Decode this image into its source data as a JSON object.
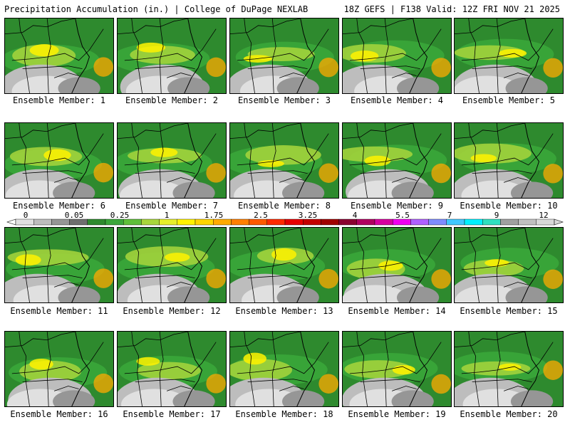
{
  "header": {
    "left": "Precipitation Accumulation (in.) | College of DuPage NEXLAB",
    "right": "18Z GEFS | F138 Valid: 12Z FRI NOV 21 2025"
  },
  "legend": {
    "tick_labels": [
      "0",
      "0.05",
      "0.25",
      "1",
      "1.75",
      "2.5",
      "3.25",
      "4",
      "5.5",
      "7",
      "9",
      "12"
    ],
    "colors": [
      "#e0e0e0",
      "#bdbdbd",
      "#969696",
      "#6e6e6e",
      "#2e8a2e",
      "#3aa63a",
      "#5fbf3a",
      "#a8d63c",
      "#e6ee2a",
      "#fff200",
      "#ffd500",
      "#ffaa00",
      "#ff7f00",
      "#ff5a00",
      "#ff2a00",
      "#e60000",
      "#c40000",
      "#a00000",
      "#8a0030",
      "#b00060",
      "#d6009f",
      "#f000f0",
      "#b060ff",
      "#7f8cff",
      "#40c8ff",
      "#00f0ff",
      "#30e0c0",
      "#a0a0a0",
      "#c0c0c0",
      "#d8d8d8"
    ]
  },
  "panels": [
    {
      "label": "Ensemble Member: 1"
    },
    {
      "label": "Ensemble Member: 2"
    },
    {
      "label": "Ensemble Member: 3"
    },
    {
      "label": "Ensemble Member: 4"
    },
    {
      "label": "Ensemble Member: 5"
    },
    {
      "label": "Ensemble Member: 6"
    },
    {
      "label": "Ensemble Member: 7"
    },
    {
      "label": "Ensemble Member: 8"
    },
    {
      "label": "Ensemble Member: 9"
    },
    {
      "label": "Ensemble Member: 10"
    },
    {
      "label": "Ensemble Member: 11"
    },
    {
      "label": "Ensemble Member: 12"
    },
    {
      "label": "Ensemble Member: 13"
    },
    {
      "label": "Ensemble Member: 14"
    },
    {
      "label": "Ensemble Member: 15"
    },
    {
      "label": "Ensemble Member: 16"
    },
    {
      "label": "Ensemble Member: 17"
    },
    {
      "label": "Ensemble Member: 18"
    },
    {
      "label": "Ensemble Member: 19"
    },
    {
      "label": "Ensemble Member: 20"
    }
  ]
}
